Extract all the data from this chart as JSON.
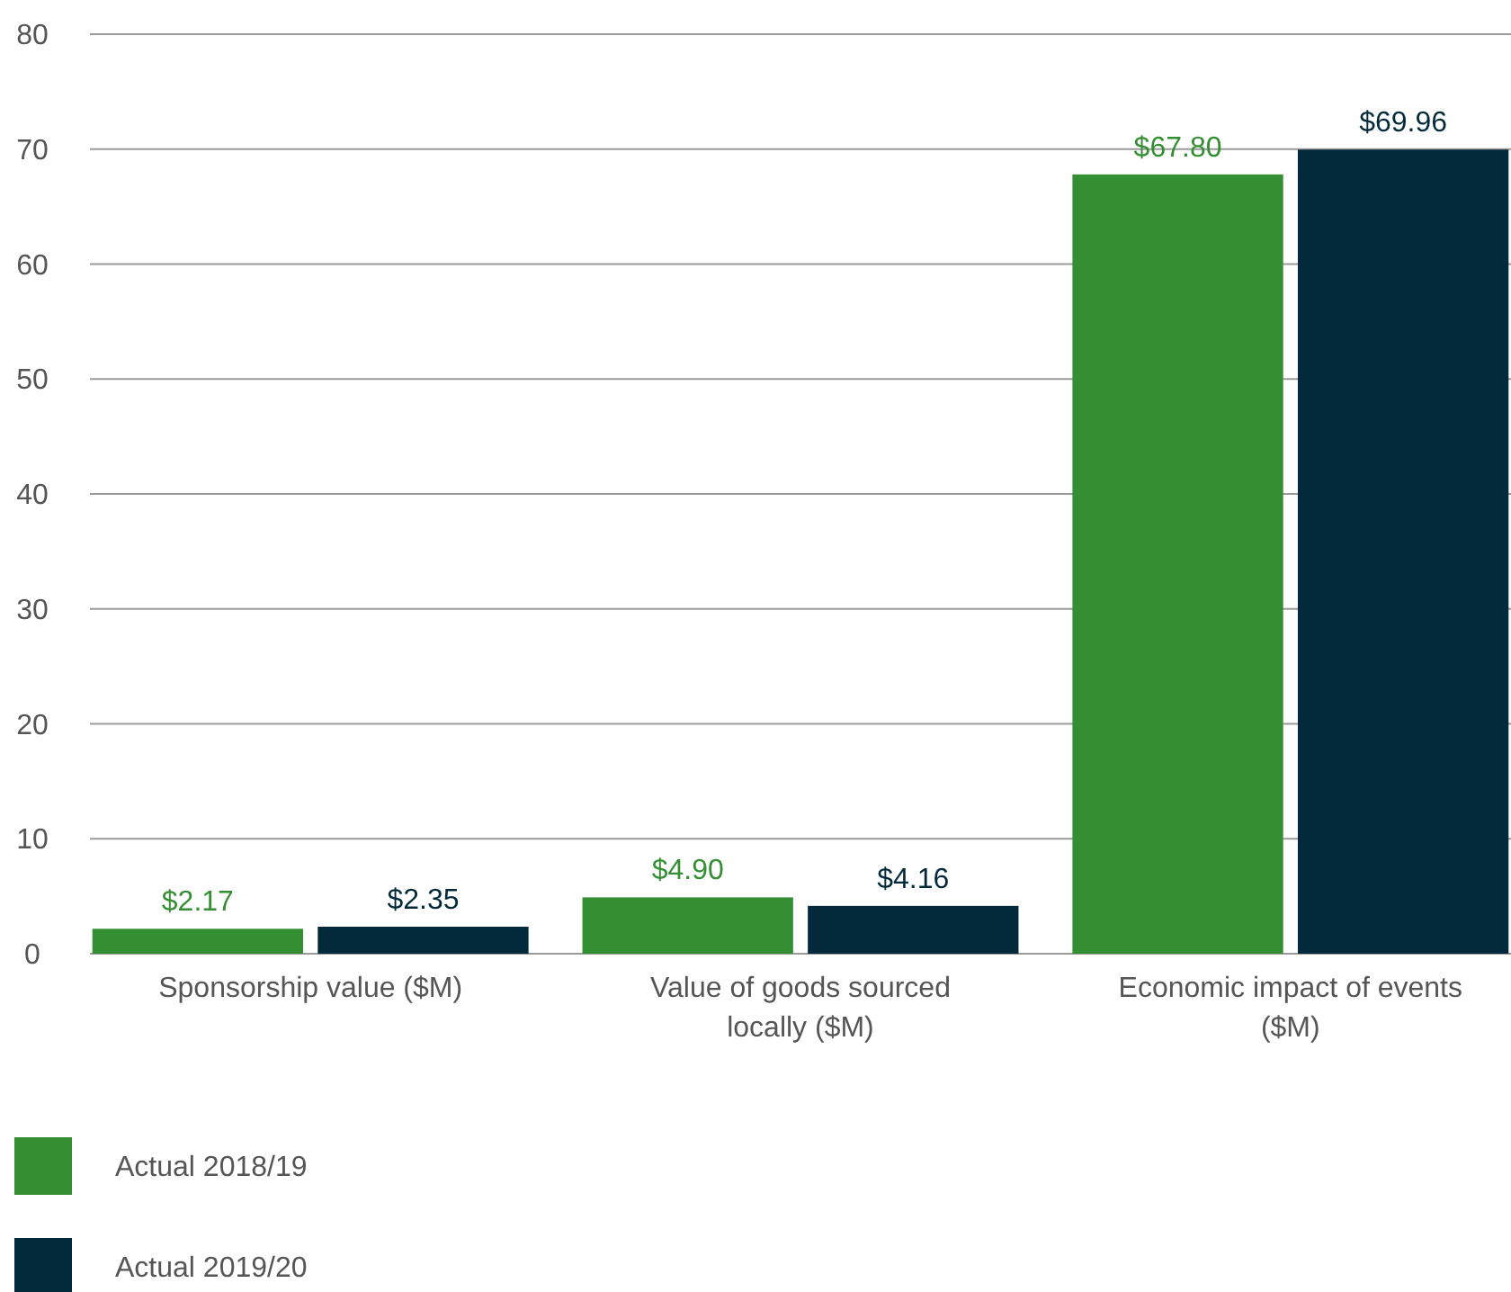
{
  "chart_data": {
    "type": "bar",
    "categories": [
      "Sponsorship value ($M)",
      "Value of goods sourced locally ($M)",
      "Economic impact of events ($M)"
    ],
    "series": [
      {
        "name": "Actual 2018/19",
        "color": "#348f33",
        "values": [
          2.17,
          4.9,
          67.8
        ],
        "value_labels": [
          "$2.17",
          "$4.90",
          "$67.80"
        ]
      },
      {
        "name": "Actual 2019/20",
        "color": "#022a3a",
        "values": [
          2.35,
          4.16,
          69.96
        ],
        "value_labels": [
          "$2.35",
          "$4.16",
          "$69.96"
        ]
      }
    ],
    "ylim": [
      0,
      80
    ],
    "yticks": [
      0,
      10,
      20,
      30,
      40,
      50,
      60,
      70,
      80
    ],
    "grid": "y",
    "legend": "bottom left"
  }
}
